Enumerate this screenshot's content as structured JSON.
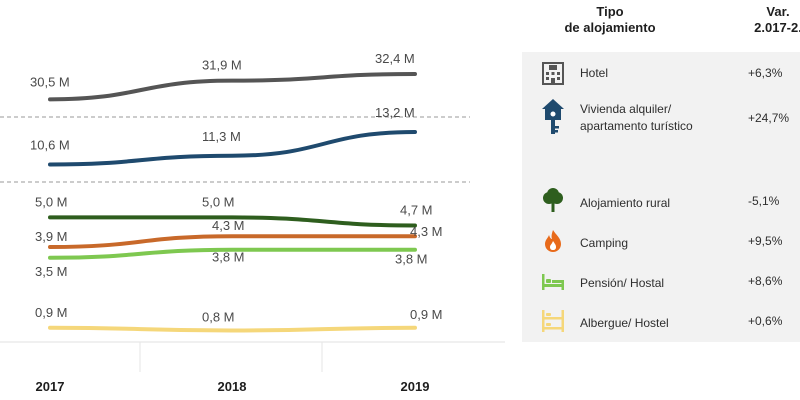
{
  "header": {
    "type_line1": "Tipo",
    "type_line2": "de alojamiento",
    "var_line1": "Var.",
    "var_line2": "2.017-2."
  },
  "rows": [
    {
      "label1": "Hotel",
      "label2": "",
      "variation": "+6,3%",
      "icon": "hotel-icon",
      "color": "#555555"
    },
    {
      "label1": "Vivienda alquiler/",
      "label2": "apartamento turístico",
      "variation": "+24,7%",
      "icon": "house-key-icon",
      "color": "#1f4a6e"
    },
    {
      "label1": "Alojamiento  rural",
      "label2": "",
      "variation": "-5,1%",
      "icon": "tree-icon",
      "color": "#2e5e1e"
    },
    {
      "label1": "Camping",
      "label2": "",
      "variation": "+9,5%",
      "icon": "fire-icon",
      "color": "#e86a1a"
    },
    {
      "label1": "Pensión/  Hostal",
      "label2": "",
      "variation": "+8,6%",
      "icon": "bed-icon",
      "color": "#7ec850"
    },
    {
      "label1": "Albergue/  Hostel",
      "label2": "",
      "variation": "+0,6%",
      "icon": "bunk-bed-icon",
      "color": "#f5d77a"
    }
  ],
  "chart_data": {
    "type": "line",
    "x": [
      "2017",
      "2018",
      "2019"
    ],
    "series": [
      {
        "name": "Hotel",
        "values": [
          30.5,
          31.9,
          32.4
        ],
        "labels": [
          "30,5 M",
          "31,9 M",
          "32,4 M"
        ],
        "color": "#555555"
      },
      {
        "name": "Vivienda alquiler/ apartamento turístico",
        "values": [
          10.6,
          11.3,
          13.2
        ],
        "labels": [
          "10,6 M",
          "11,3 M",
          "13,2 M"
        ],
        "color": "#1f4a6e"
      },
      {
        "name": "Alojamiento rural",
        "values": [
          5.0,
          5.0,
          4.7
        ],
        "labels": [
          "5,0 M",
          "5,0 M",
          "4,7 M"
        ],
        "color": "#2e5e1e"
      },
      {
        "name": "Camping",
        "values": [
          3.9,
          4.3,
          4.3
        ],
        "labels": [
          "3,9 M",
          "4,3 M",
          "4,3 M"
        ],
        "color": "#c8692a"
      },
      {
        "name": "Pensión/ Hostal",
        "values": [
          3.5,
          3.8,
          3.8
        ],
        "labels": [
          "3,5 M",
          "3,8 M",
          "3,8 M"
        ],
        "color": "#7ec850"
      },
      {
        "name": "Albergue/ Hostel",
        "values": [
          0.9,
          0.8,
          0.9
        ],
        "labels": [
          "0,9 M",
          "0,8 M",
          "0,9 M"
        ],
        "color": "#f5d77a"
      }
    ],
    "axis_break": "dashed lines between value bands",
    "grid": false,
    "legend": "right-side table"
  }
}
